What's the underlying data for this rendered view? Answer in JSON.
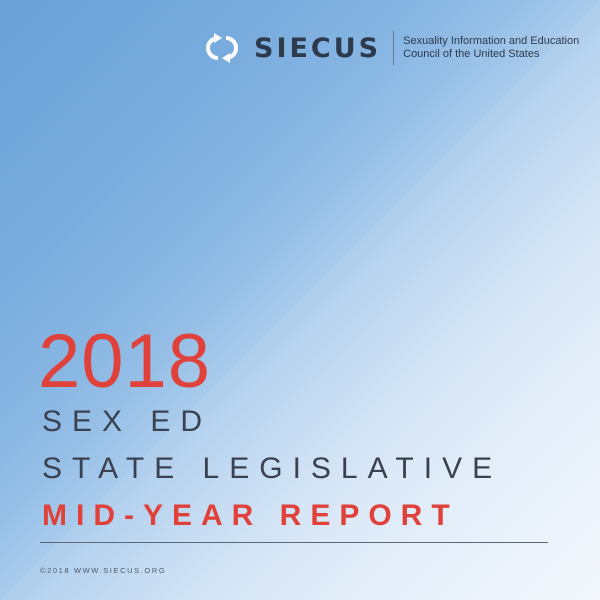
{
  "logo": {
    "name": "SIECUS",
    "tagline_line1": "Sexuality Information and Education",
    "tagline_line2": "Council of the United States",
    "icon": "siecus-arrows-icon"
  },
  "title": {
    "year": "2018",
    "line1": "SEX ED",
    "line2": "STATE LEGISLATIVE",
    "line3": "MID-YEAR REPORT"
  },
  "footer": {
    "text": "©2018  WWW.SIECUS.ORG"
  },
  "colors": {
    "accent": "#e0413a",
    "text": "#3a4150",
    "background": "#8ab8e3"
  }
}
